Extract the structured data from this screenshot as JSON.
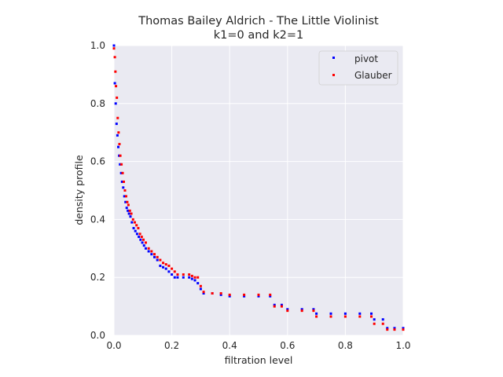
{
  "chart_data": {
    "type": "scatter",
    "title": "Thomas Bailey Aldrich - The Little Violinist",
    "subtitle": "k1=0 and k2=1",
    "xlabel": "filtration level",
    "ylabel": "density profile",
    "xlim": [
      0,
      1
    ],
    "ylim": [
      0,
      1
    ],
    "xticks": [
      "0.0",
      "0.2",
      "0.4",
      "0.6",
      "0.8",
      "1.0"
    ],
    "yticks": [
      "0.0",
      "0.2",
      "0.4",
      "0.6",
      "0.8",
      "1.0"
    ],
    "grid": true,
    "legend_position": "top-right",
    "series": [
      {
        "name": "pivot",
        "color": "#0000ff",
        "points": [
          [
            0.0,
            1.0
          ],
          [
            0.003,
            0.87
          ],
          [
            0.006,
            0.8
          ],
          [
            0.009,
            0.73
          ],
          [
            0.012,
            0.69
          ],
          [
            0.015,
            0.65
          ],
          [
            0.018,
            0.62
          ],
          [
            0.021,
            0.59
          ],
          [
            0.025,
            0.56
          ],
          [
            0.028,
            0.53
          ],
          [
            0.032,
            0.51
          ],
          [
            0.036,
            0.48
          ],
          [
            0.04,
            0.46
          ],
          [
            0.044,
            0.44
          ],
          [
            0.048,
            0.43
          ],
          [
            0.052,
            0.42
          ],
          [
            0.057,
            0.41
          ],
          [
            0.062,
            0.39
          ],
          [
            0.068,
            0.37
          ],
          [
            0.074,
            0.36
          ],
          [
            0.08,
            0.35
          ],
          [
            0.086,
            0.34
          ],
          [
            0.092,
            0.33
          ],
          [
            0.098,
            0.32
          ],
          [
            0.104,
            0.31
          ],
          [
            0.11,
            0.3
          ],
          [
            0.12,
            0.29
          ],
          [
            0.13,
            0.28
          ],
          [
            0.14,
            0.27
          ],
          [
            0.15,
            0.26
          ],
          [
            0.16,
            0.24
          ],
          [
            0.17,
            0.235
          ],
          [
            0.18,
            0.23
          ],
          [
            0.19,
            0.22
          ],
          [
            0.2,
            0.21
          ],
          [
            0.21,
            0.2
          ],
          [
            0.22,
            0.2
          ],
          [
            0.24,
            0.2
          ],
          [
            0.26,
            0.2
          ],
          [
            0.27,
            0.195
          ],
          [
            0.28,
            0.19
          ],
          [
            0.29,
            0.18
          ],
          [
            0.3,
            0.16
          ],
          [
            0.31,
            0.145
          ],
          [
            0.34,
            0.145
          ],
          [
            0.37,
            0.14
          ],
          [
            0.4,
            0.135
          ],
          [
            0.45,
            0.135
          ],
          [
            0.5,
            0.135
          ],
          [
            0.54,
            0.135
          ],
          [
            0.555,
            0.105
          ],
          [
            0.58,
            0.105
          ],
          [
            0.6,
            0.09
          ],
          [
            0.65,
            0.09
          ],
          [
            0.69,
            0.09
          ],
          [
            0.7,
            0.075
          ],
          [
            0.75,
            0.075
          ],
          [
            0.8,
            0.075
          ],
          [
            0.85,
            0.075
          ],
          [
            0.89,
            0.075
          ],
          [
            0.9,
            0.055
          ],
          [
            0.93,
            0.055
          ],
          [
            0.945,
            0.025
          ],
          [
            0.97,
            0.025
          ],
          [
            1.0,
            0.025
          ]
        ]
      },
      {
        "name": "Glauber",
        "color": "#ff0000",
        "points": [
          [
            0.0,
            0.99
          ],
          [
            0.003,
            0.96
          ],
          [
            0.005,
            0.91
          ],
          [
            0.007,
            0.86
          ],
          [
            0.01,
            0.82
          ],
          [
            0.013,
            0.75
          ],
          [
            0.016,
            0.7
          ],
          [
            0.019,
            0.66
          ],
          [
            0.022,
            0.62
          ],
          [
            0.026,
            0.59
          ],
          [
            0.03,
            0.56
          ],
          [
            0.034,
            0.53
          ],
          [
            0.038,
            0.5
          ],
          [
            0.042,
            0.48
          ],
          [
            0.046,
            0.46
          ],
          [
            0.05,
            0.45
          ],
          [
            0.055,
            0.43
          ],
          [
            0.06,
            0.42
          ],
          [
            0.066,
            0.4
          ],
          [
            0.072,
            0.39
          ],
          [
            0.078,
            0.38
          ],
          [
            0.084,
            0.37
          ],
          [
            0.09,
            0.35
          ],
          [
            0.096,
            0.34
          ],
          [
            0.102,
            0.33
          ],
          [
            0.11,
            0.32
          ],
          [
            0.12,
            0.3
          ],
          [
            0.13,
            0.29
          ],
          [
            0.14,
            0.28
          ],
          [
            0.15,
            0.27
          ],
          [
            0.16,
            0.26
          ],
          [
            0.17,
            0.25
          ],
          [
            0.18,
            0.245
          ],
          [
            0.19,
            0.24
          ],
          [
            0.2,
            0.23
          ],
          [
            0.21,
            0.22
          ],
          [
            0.22,
            0.21
          ],
          [
            0.24,
            0.21
          ],
          [
            0.26,
            0.21
          ],
          [
            0.27,
            0.205
          ],
          [
            0.28,
            0.2
          ],
          [
            0.29,
            0.2
          ],
          [
            0.3,
            0.17
          ],
          [
            0.31,
            0.15
          ],
          [
            0.34,
            0.145
          ],
          [
            0.37,
            0.145
          ],
          [
            0.4,
            0.14
          ],
          [
            0.45,
            0.14
          ],
          [
            0.5,
            0.14
          ],
          [
            0.54,
            0.14
          ],
          [
            0.555,
            0.1
          ],
          [
            0.58,
            0.1
          ],
          [
            0.6,
            0.085
          ],
          [
            0.65,
            0.085
          ],
          [
            0.69,
            0.085
          ],
          [
            0.7,
            0.065
          ],
          [
            0.75,
            0.065
          ],
          [
            0.8,
            0.065
          ],
          [
            0.85,
            0.065
          ],
          [
            0.89,
            0.065
          ],
          [
            0.9,
            0.04
          ],
          [
            0.93,
            0.04
          ],
          [
            0.945,
            0.02
          ],
          [
            0.97,
            0.02
          ],
          [
            1.0,
            0.02
          ]
        ]
      }
    ]
  }
}
